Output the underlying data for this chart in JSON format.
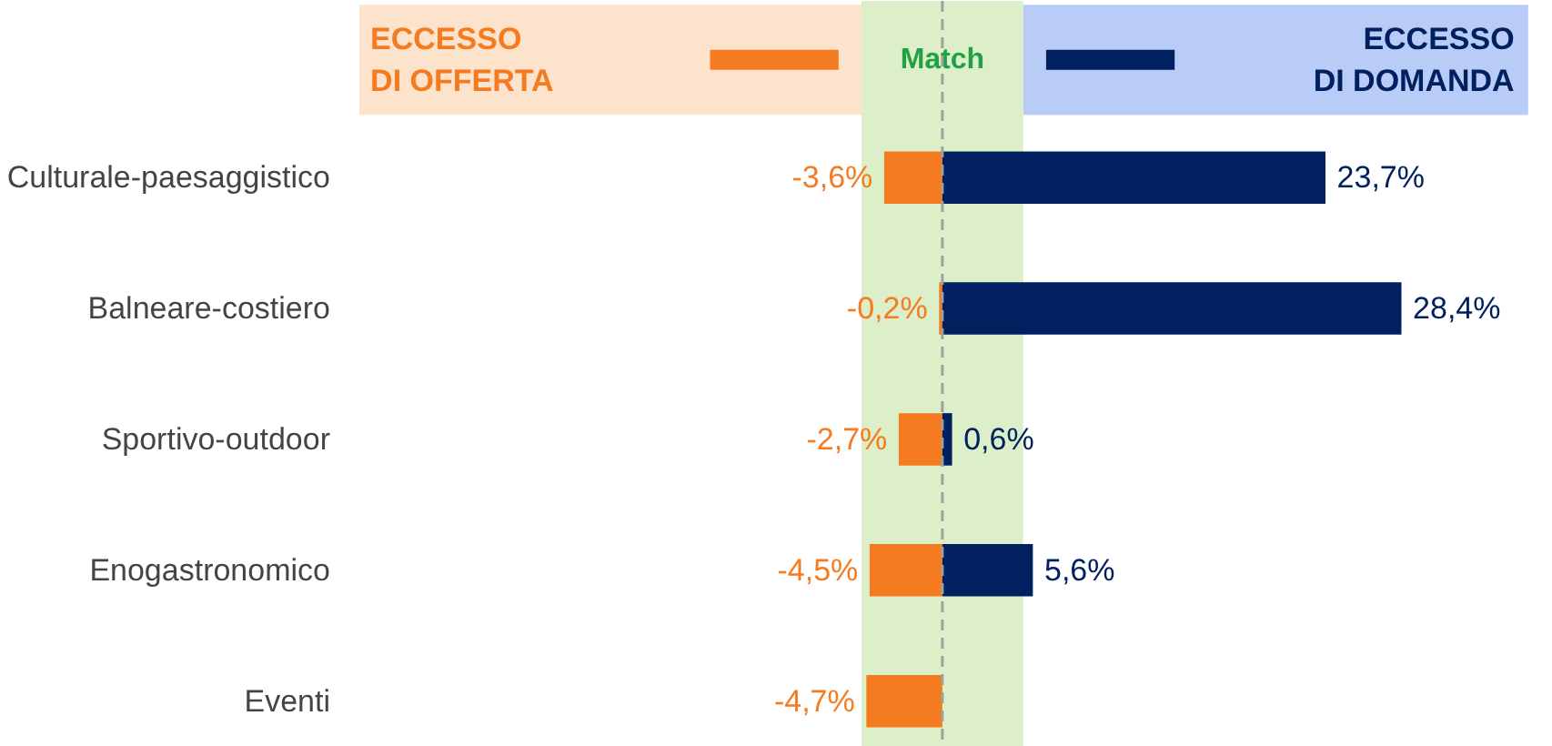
{
  "chart_data": {
    "type": "bar",
    "orientation": "horizontal",
    "categories": [
      "Culturale-paesaggistico",
      "Balneare-costiero",
      "Sportivo-outdoor",
      "Enogastronomico",
      "Eventi"
    ],
    "series": [
      {
        "color": "#f47b20",
        "values": [
          -3.6,
          -0.2,
          -2.7,
          -4.5,
          -4.7
        ],
        "value_labels": [
          "-3,6%",
          "-0,2%",
          "-2,7%",
          "-4,5%",
          "-4,7%"
        ]
      },
      {
        "color": "#002060",
        "values": [
          23.7,
          28.4,
          0.6,
          5.6,
          null
        ],
        "value_labels": [
          "23,7%",
          "28,4%",
          "0,6%",
          "5,6%",
          null
        ]
      }
    ],
    "bands": [
      {
        "axis": "x",
        "from": -5,
        "to": 5,
        "label": "Match",
        "color": "#dcefc8"
      }
    ],
    "ref_lines": [
      {
        "axis": "x",
        "value": 0,
        "color": "#a0a0a0",
        "line_style": "dashed"
      }
    ],
    "annotations": [
      "ECCESSO\nDI OFFERTA",
      "ECCESSO\nDI DOMANDA"
    ],
    "grid": false,
    "stacked": true
  }
}
